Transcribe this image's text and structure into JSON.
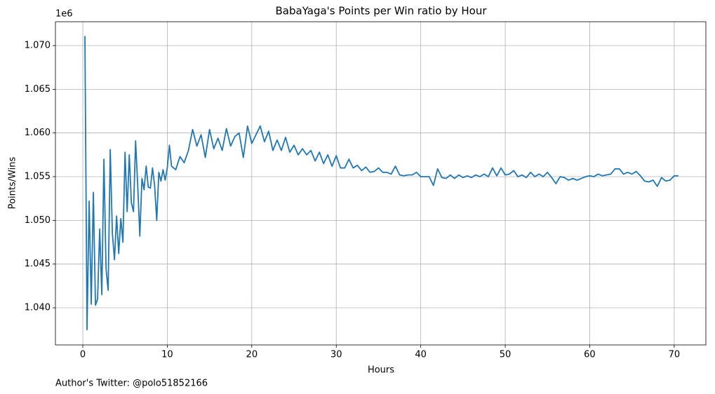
{
  "chart_data": {
    "type": "line",
    "title": "BabaYaga's Points per Win ratio by Hour",
    "x_label": "Hours",
    "y_label": "Points/Wins",
    "y_offset_label": "1e6",
    "annotation": "Author's Twitter: @polo51852166",
    "grid": true,
    "xlim": [
      -3.24,
      73.75
    ],
    "ylim": [
      1035750,
      1072730
    ],
    "xticks": [
      0,
      10,
      20,
      30,
      40,
      50,
      60,
      70
    ],
    "yticks": [
      {
        "value": 1040000,
        "label": "1.040"
      },
      {
        "value": 1045000,
        "label": "1.045"
      },
      {
        "value": 1050000,
        "label": "1.050"
      },
      {
        "value": 1055000,
        "label": "1.055"
      },
      {
        "value": 1060000,
        "label": "1.060"
      },
      {
        "value": 1065000,
        "label": "1.065"
      },
      {
        "value": 1070000,
        "label": "1.070"
      }
    ],
    "x": [
      0.25,
      0.5,
      0.75,
      1.0,
      1.25,
      1.5,
      1.75,
      2.0,
      2.25,
      2.5,
      2.75,
      3.0,
      3.25,
      3.5,
      3.75,
      4.0,
      4.25,
      4.5,
      4.75,
      5.0,
      5.25,
      5.5,
      5.75,
      6.0,
      6.25,
      6.5,
      6.75,
      7.0,
      7.25,
      7.5,
      7.75,
      8.0,
      8.25,
      8.5,
      8.75,
      9.0,
      9.25,
      9.5,
      9.75,
      10.0,
      10.25,
      10.5,
      11.0,
      11.5,
      12.0,
      12.5,
      13.0,
      13.5,
      14.0,
      14.5,
      15.0,
      15.5,
      16.0,
      16.5,
      17.0,
      17.5,
      18.0,
      18.5,
      19.0,
      19.5,
      20.0,
      20.5,
      21.0,
      21.5,
      22.0,
      22.5,
      23.0,
      23.5,
      24.0,
      24.5,
      25.0,
      25.5,
      26.0,
      26.5,
      27.0,
      27.5,
      28.0,
      28.5,
      29.0,
      29.5,
      30.0,
      30.5,
      31.0,
      31.5,
      32.0,
      32.5,
      33.0,
      33.5,
      34.0,
      34.5,
      35.0,
      35.5,
      36.0,
      36.5,
      37.0,
      37.5,
      38.0,
      38.5,
      39.0,
      39.5,
      40.0,
      40.5,
      41.0,
      41.5,
      42.0,
      42.5,
      43.0,
      43.5,
      44.0,
      44.5,
      45.0,
      45.5,
      46.0,
      46.5,
      47.0,
      47.5,
      48.0,
      48.5,
      49.0,
      49.5,
      50.0,
      50.5,
      51.0,
      51.5,
      52.0,
      52.5,
      53.0,
      53.5,
      54.0,
      54.5,
      55.0,
      55.5,
      56.0,
      56.5,
      57.0,
      57.5,
      58.0,
      58.5,
      59.0,
      59.5,
      60.0,
      60.5,
      61.0,
      61.5,
      62.0,
      62.5,
      63.0,
      63.5,
      64.0,
      64.5,
      65.0,
      65.5,
      66.0,
      66.5,
      67.0,
      67.5,
      68.0,
      68.5,
      69.0,
      69.5,
      70.0,
      70.5
    ],
    "series": [
      {
        "color": "#1f77b4",
        "values": [
          1071100,
          1037500,
          1052200,
          1040400,
          1053200,
          1040300,
          1041000,
          1049000,
          1041500,
          1057000,
          1044500,
          1042000,
          1058100,
          1048500,
          1045500,
          1050500,
          1046200,
          1050200,
          1047500,
          1057800,
          1051000,
          1057500,
          1052000,
          1051000,
          1059100,
          1054000,
          1048200,
          1054800,
          1053500,
          1056200,
          1053800,
          1053700,
          1056000,
          1054000,
          1050000,
          1055500,
          1054500,
          1055800,
          1054600,
          1056000,
          1058600,
          1056200,
          1055800,
          1057300,
          1056600,
          1058000,
          1060400,
          1058500,
          1059800,
          1057200,
          1060400,
          1058200,
          1059400,
          1058000,
          1060500,
          1058500,
          1059600,
          1060000,
          1057200,
          1060800,
          1058800,
          1059800,
          1060800,
          1059000,
          1060200,
          1058000,
          1059200,
          1058000,
          1059500,
          1057800,
          1058600,
          1057500,
          1058200,
          1057500,
          1058000,
          1056800,
          1057800,
          1056500,
          1057500,
          1056200,
          1057400,
          1056000,
          1056000,
          1057000,
          1056000,
          1056300,
          1055700,
          1056100,
          1055500,
          1055600,
          1056000,
          1055500,
          1055500,
          1055300,
          1056200,
          1055200,
          1055100,
          1055200,
          1055200,
          1055500,
          1055000,
          1055000,
          1055000,
          1054000,
          1055900,
          1054900,
          1054800,
          1055200,
          1054800,
          1055200,
          1054900,
          1055100,
          1054900,
          1055200,
          1055000,
          1055300,
          1055000,
          1056000,
          1055100,
          1056000,
          1055200,
          1055300,
          1055700,
          1055000,
          1055200,
          1054900,
          1055500,
          1055000,
          1055300,
          1055000,
          1055500,
          1054900,
          1054200,
          1055000,
          1054900,
          1054600,
          1054800,
          1054600,
          1054800,
          1055000,
          1055100,
          1055000,
          1055300,
          1055100,
          1055200,
          1055300,
          1055900,
          1055900,
          1055300,
          1055500,
          1055300,
          1055600,
          1055100,
          1054500,
          1054400,
          1054600,
          1053900,
          1054900,
          1054500,
          1054600,
          1055100,
          1055100
        ]
      }
    ]
  }
}
